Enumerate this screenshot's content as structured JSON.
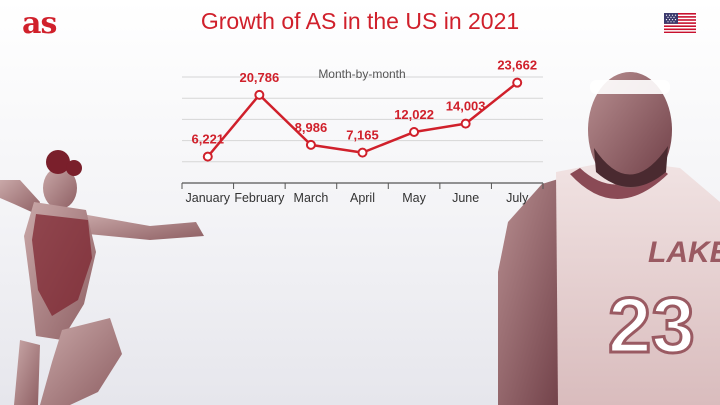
{
  "brand": {
    "logo_text": "as",
    "accent": "#d0202b"
  },
  "header": {
    "title": "Growth of AS in the US in 2021",
    "flag_icon": "us-flag-icon"
  },
  "images": [
    {
      "name": "gymnast-photo",
      "description": "duotone photo of a gymnast in a leaping pose"
    },
    {
      "name": "basketball-player-photo",
      "description": "duotone photo of a basketball player in a Lakers 23 jersey"
    }
  ],
  "chart_data": {
    "type": "line",
    "title": "Growth of AS in the US in 2021",
    "subtitle": "Month-by-month",
    "categories": [
      "January",
      "February",
      "March",
      "April",
      "May",
      "June",
      "July"
    ],
    "values": [
      6221,
      20786,
      8986,
      7165,
      12022,
      14003,
      23662
    ],
    "labels": [
      "6,221",
      "20,786",
      "8,986",
      "7,165",
      "12,022",
      "14,003",
      "23,662"
    ],
    "ylim": [
      0,
      25000
    ],
    "grid": true,
    "legend": false,
    "line_color": "#d0202b"
  }
}
